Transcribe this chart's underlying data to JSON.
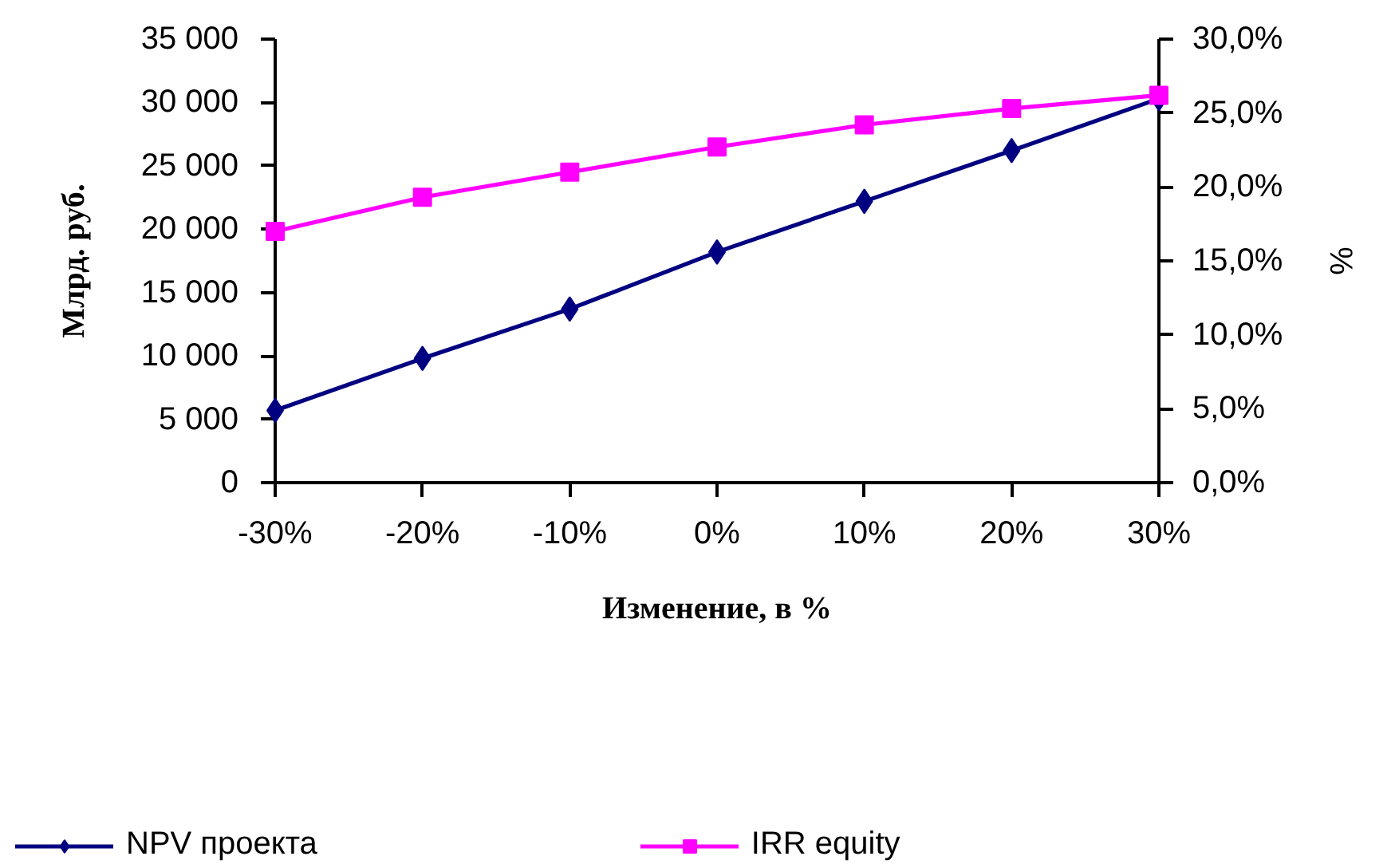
{
  "chart_data": {
    "type": "line",
    "xlabel": "Изменение, в %",
    "ylabel": "Млрд. руб.",
    "y2label": "%",
    "categories": [
      "-30%",
      "-20%",
      "-10%",
      "0%",
      "10%",
      "20%",
      "30%"
    ],
    "series": [
      {
        "name": "NPV проекта",
        "color": "#000080",
        "marker": "diamond",
        "values": [
          5700,
          9800,
          13700,
          18200,
          22200,
          26200,
          30300
        ]
      },
      {
        "name": "IRR equity",
        "color": "#ff00ff",
        "marker": "square",
        "axis": "y2",
        "values": [
          17.0,
          19.3,
          21.0,
          22.7,
          24.2,
          25.3,
          26.2
        ]
      }
    ],
    "ylim": [
      0,
      35000
    ],
    "yticks": [
      0,
      {
        "value": 5000,
        "label": "5 000"
      },
      {
        "value": 10000,
        "label": "10 000"
      },
      {
        "value": 15000,
        "label": "15 000"
      },
      {
        "value": 20000,
        "label": "20 000"
      },
      {
        "value": 25000,
        "label": "25 000"
      },
      {
        "value": 30000,
        "label": "30 000"
      },
      {
        "value": 35000,
        "label": "35 000"
      }
    ],
    "y2lim": [
      0,
      30
    ],
    "y2ticks": [
      {
        "value": 0,
        "label": "0,0%"
      },
      {
        "value": 5,
        "label": "5,0%"
      },
      {
        "value": 10,
        "label": "10,0%"
      },
      {
        "value": 15,
        "label": "15,0%"
      },
      {
        "value": 20,
        "label": "20,0%"
      },
      {
        "value": 25,
        "label": "25,0%"
      },
      {
        "value": 30,
        "label": "30,0%"
      }
    ],
    "grid": false,
    "legend": "bottom",
    "line_style": "solid"
  }
}
